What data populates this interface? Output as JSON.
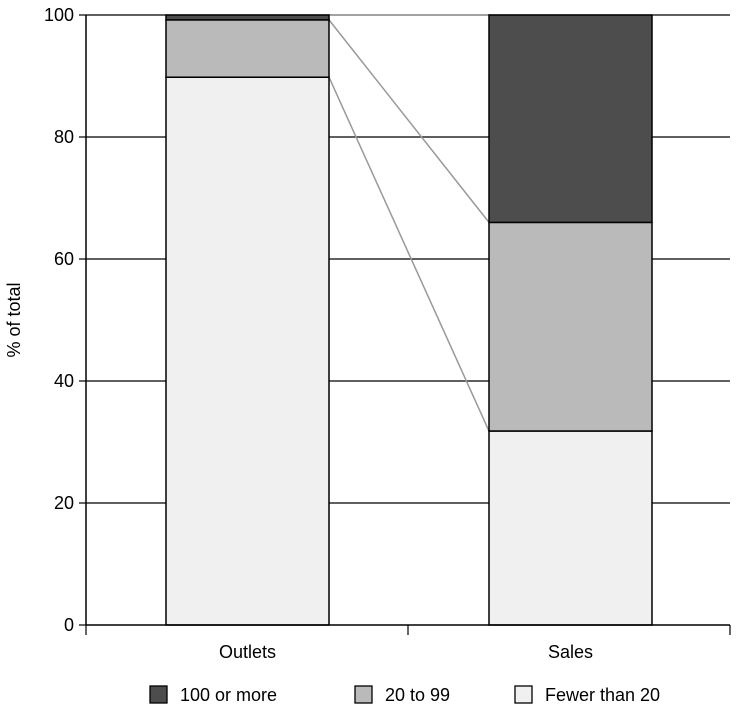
{
  "chart_data": {
    "type": "bar",
    "stacked": true,
    "categories": [
      "Outlets",
      "Sales"
    ],
    "series": [
      {
        "name": "Fewer than 20",
        "values": [
          89.8,
          31.8
        ],
        "color": "#f0f0f0"
      },
      {
        "name": "20 to 99",
        "values": [
          9.4,
          34.2
        ],
        "color": "#bababa"
      },
      {
        "name": "100 or more",
        "values": [
          0.8,
          34.0
        ],
        "color": "#4d4d4d"
      }
    ],
    "legend_order": [
      "100 or more",
      "20 to 99",
      "Fewer than 20"
    ],
    "title": "",
    "xlabel": "",
    "ylabel": "% of total",
    "ylim": [
      0,
      100
    ],
    "yticks": [
      0,
      20,
      40,
      60,
      80,
      100
    ],
    "grid": true,
    "legend_position": "bottom",
    "connector_color": "#999999"
  }
}
